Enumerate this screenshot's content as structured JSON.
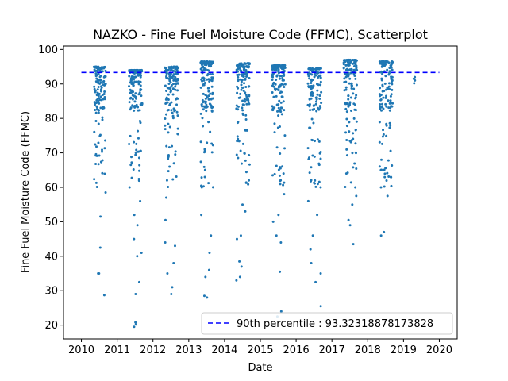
{
  "chart_data": {
    "type": "scatter",
    "title": "NAZKO - Fine Fuel Moisture Code (FFMC), Scatterplot",
    "xlabel": "Date",
    "ylabel": "Fine Fuel Moisture Code (FFMC)",
    "xlim": [
      2009.5,
      2020.5
    ],
    "ylim": [
      16,
      101
    ],
    "xticks": [
      "2010",
      "2011",
      "2012",
      "2013",
      "2014",
      "2015",
      "2016",
      "2017",
      "2018",
      "2019",
      "2020"
    ],
    "yticks": [
      "20",
      "30",
      "40",
      "50",
      "60",
      "70",
      "80",
      "90",
      "100"
    ],
    "grid": false,
    "legend_position": "lower-right",
    "reference_line": {
      "label": "90th percentile : 93.32318878173828",
      "value": 93.32318878173828,
      "x_range": [
        2010,
        2020
      ],
      "color": "#0000ff",
      "style": "dashed"
    },
    "marker_color": "#1f77b4",
    "series": [
      {
        "seasons": [
          {
            "year": 2010,
            "x_start": 2010.35,
            "x_end": 2010.68,
            "min": 28.5,
            "max": 95.0,
            "low_values": [
              35.0,
              35.0,
              42.5,
              28.7,
              51.5,
              58.5,
              66.8,
              69.2
            ]
          },
          {
            "year": 2011,
            "x_start": 2011.33,
            "x_end": 2011.7,
            "min": 19.5,
            "max": 94.0,
            "low_values": [
              20.8,
              20.2,
              19.5,
              29.0,
              32.5,
              40.0,
              41.0,
              45.0,
              49.0,
              52.0,
              56.0,
              60.0
            ]
          },
          {
            "year": 2012,
            "x_start": 2012.33,
            "x_end": 2012.7,
            "min": 29.0,
            "max": 95.0,
            "low_values": [
              29.0,
              31.0,
              35.0,
              38.0,
              43.0,
              44.0,
              50.5,
              57.0,
              62.0,
              66.0
            ]
          },
          {
            "year": 2013,
            "x_start": 2013.33,
            "x_end": 2013.68,
            "min": 28.0,
            "max": 96.5,
            "low_values": [
              28.5,
              28.0,
              34.0,
              36.0,
              41.0,
              46.0,
              52.0,
              60.0,
              63.0
            ]
          },
          {
            "year": 2014,
            "x_start": 2014.33,
            "x_end": 2014.7,
            "min": 33.0,
            "max": 96.0,
            "low_values": [
              33.0,
              34.0,
              37.0,
              38.5,
              45.0,
              46.0,
              53.0,
              55.0,
              62.0
            ]
          },
          {
            "year": 2015,
            "x_start": 2015.33,
            "x_end": 2015.7,
            "min": 22.5,
            "max": 95.5,
            "low_values": [
              22.5,
              24.0,
              35.5,
              44.0,
              46.0,
              50.0,
              52.0,
              58.0,
              64.0
            ]
          },
          {
            "year": 2016,
            "x_start": 2016.33,
            "x_end": 2016.7,
            "min": 25.5,
            "max": 94.5,
            "low_values": [
              25.5,
              32.5,
              35.0,
              38.0,
              42.0,
              46.0,
              52.0,
              56.0,
              60.0
            ]
          },
          {
            "year": 2017,
            "x_start": 2017.33,
            "x_end": 2017.7,
            "min": 43.5,
            "max": 97.0,
            "low_values": [
              43.5,
              49.0,
              50.5,
              55.0,
              57.5,
              60.0,
              64.0
            ]
          },
          {
            "year": 2018,
            "x_start": 2018.33,
            "x_end": 2018.7,
            "min": 46.0,
            "max": 96.5,
            "low_values": [
              46.0,
              47.0,
              57.5,
              60.0,
              63.0,
              65.0,
              68.0
            ]
          },
          {
            "year": 2019,
            "x_start": 2019.28,
            "x_end": 2019.32,
            "min": 90.0,
            "max": 92.0,
            "low_values": [
              90.2,
              91.0,
              91.5,
              92.0
            ]
          }
        ]
      }
    ]
  }
}
